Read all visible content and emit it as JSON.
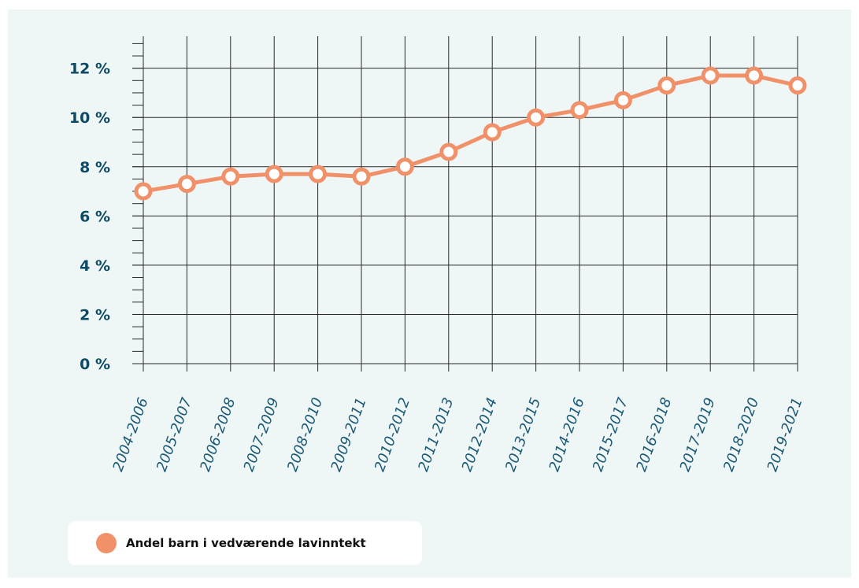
{
  "chart_data": {
    "type": "line",
    "categories": [
      "2004-2006",
      "2005-2007",
      "2006-2008",
      "2007-2009",
      "2008-2010",
      "2009-2011",
      "2010-2012",
      "2011-2013",
      "2012-2014",
      "2013-2015",
      "2014-2016",
      "2015-2017",
      "2016-2018",
      "2017-2019",
      "2018-2020",
      "2019-2021"
    ],
    "series": [
      {
        "name": "Andel barn i vedværende lavinntekt",
        "values": [
          7.0,
          7.3,
          7.6,
          7.7,
          7.7,
          7.6,
          8.0,
          8.6,
          9.4,
          10.0,
          10.3,
          10.7,
          11.3,
          11.7,
          11.7,
          11.3
        ],
        "color": "#f0916a"
      }
    ],
    "y_tick_labels": [
      "0 %",
      "2 %",
      "4 %",
      "6 %",
      "8 %",
      "10 %",
      "12 %"
    ],
    "ylim": [
      0,
      13.3
    ],
    "y_major_step": 2,
    "y_minor_step": 0.5,
    "grid": true,
    "legend_position": "bottom-left"
  },
  "colors": {
    "background": "#eef6f6",
    "grid": "#2a2a2a",
    "tick_label": "#0d4a63"
  }
}
